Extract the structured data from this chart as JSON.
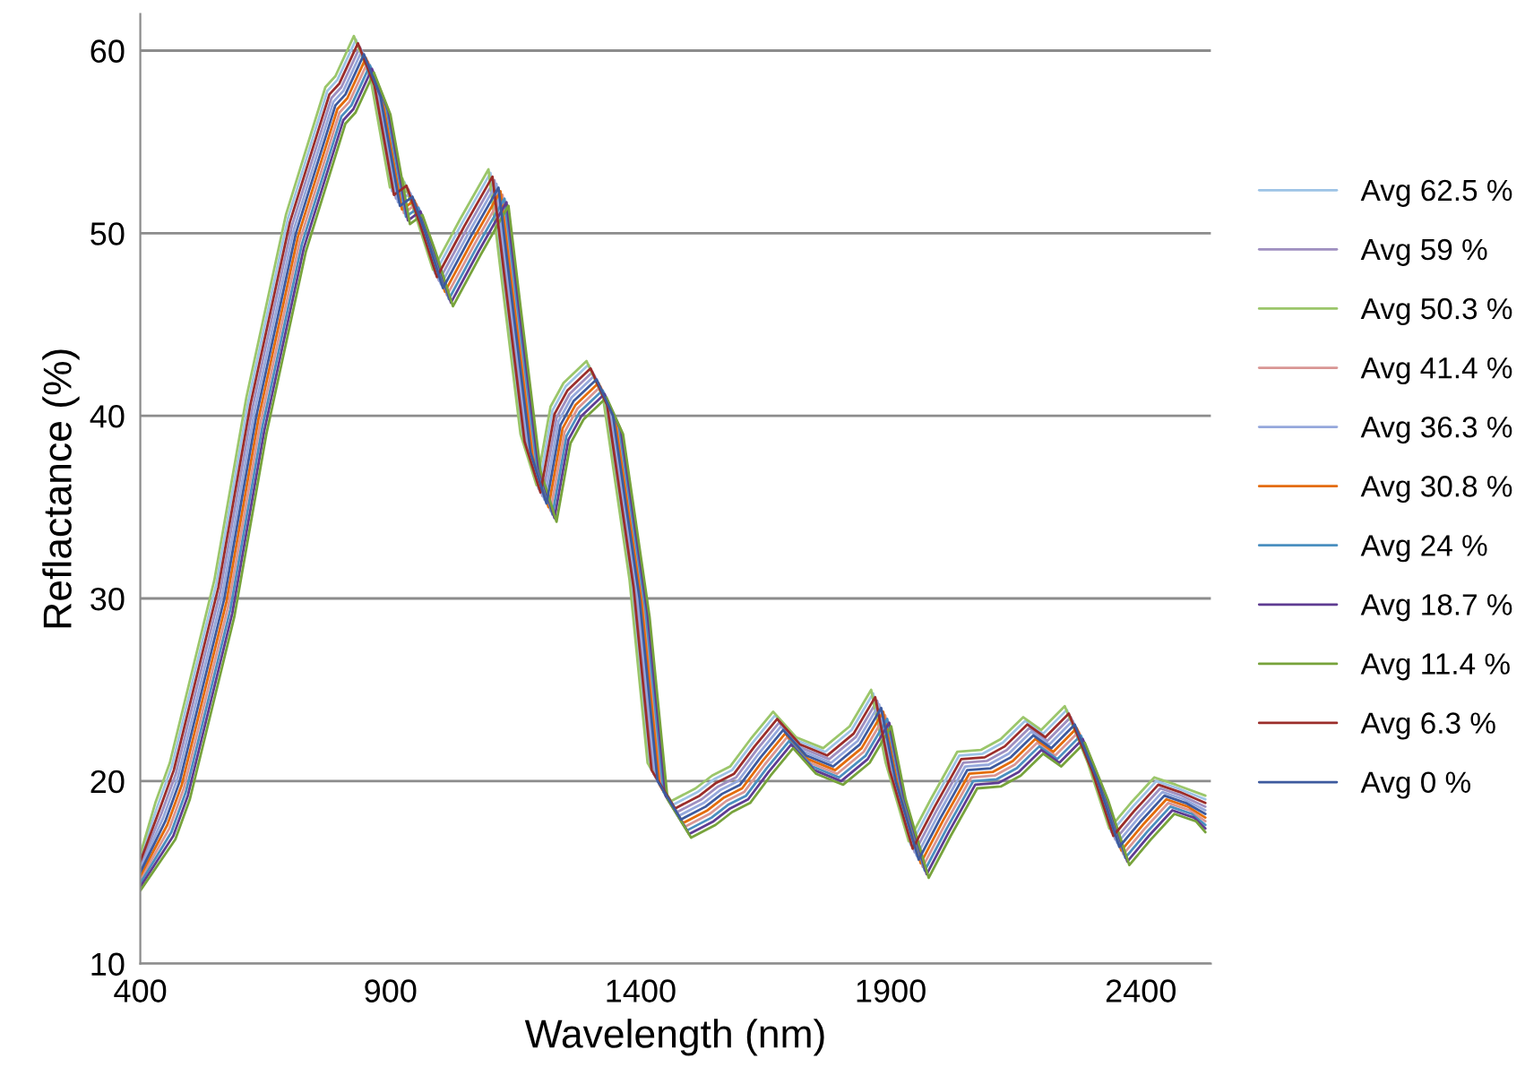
{
  "chart_data": {
    "type": "line",
    "xlabel": "Wavelength (nm)",
    "ylabel": "Reflactance (%)",
    "xlim": [
      400,
      2540
    ],
    "xticks": [
      400,
      900,
      1400,
      1900,
      2400
    ],
    "ylim": [
      10,
      62
    ],
    "yticks": [
      10,
      20,
      30,
      40,
      50,
      60
    ],
    "grid": "y",
    "legend": "right",
    "x": [
      400,
      450,
      479,
      568,
      632,
      711,
      790,
      810,
      847,
      880,
      919,
      944,
      970,
      1005,
      1060,
      1116,
      1140,
      1180,
      1212,
      1240,
      1266,
      1312,
      1345,
      1398,
      1434,
      1481,
      1530,
      1563,
      1599,
      1640,
      1685,
      1731,
      1785,
      1838,
      1881,
      1910,
      1956,
      2000,
      2053,
      2100,
      2140,
      2185,
      2221,
      2268,
      2314,
      2357,
      2400,
      2447,
      2490,
      2529
    ],
    "series": [
      {
        "name": "Avg 62.5 %",
        "color": "#9dc3e6",
        "x": [
          400,
          434,
          463,
          552,
          616,
          695,
          774,
          794,
          831,
          864,
          903,
          928,
          954,
          989,
          1044,
          1100,
          1124,
          1164,
          1196,
          1224,
          1250,
          1296,
          1329,
          1382,
          1418,
          1465,
          1514,
          1547,
          1583,
          1624,
          1669,
          1715,
          1769,
          1822,
          1865,
          1894,
          1940,
          1984,
          2037,
          2084,
          2124,
          2169,
          2205,
          2252,
          2298,
          2341,
          2384,
          2431,
          2474,
          2529
        ],
        "values": [
          15.8,
          18.6,
          20.8,
          30.8,
          40.8,
          50.8,
          57.8,
          58.4,
          60.6,
          58.3,
          52.3,
          52.8,
          50.8,
          47.8,
          50.6,
          53.3,
          47.8,
          38.8,
          36,
          40.3,
          41.6,
          42.8,
          40.8,
          30.8,
          20.8,
          18.7,
          19.4,
          20.1,
          20.6,
          22.1,
          23.6,
          22.2,
          21.6,
          22.8,
          24.8,
          20.8,
          16.5,
          18.8,
          21.4,
          21.5,
          22.1,
          23.3,
          22.6,
          23.9,
          20.8,
          17.2,
          18.6,
          20,
          19.6,
          19
        ]
      },
      {
        "name": "Avg 59 %",
        "color": "#9e8fc0",
        "x": [
          400,
          442,
          471,
          560,
          624,
          703,
          782,
          802,
          839,
          872,
          911,
          936,
          962,
          997,
          1052,
          1108,
          1132,
          1172,
          1204,
          1232,
          1258,
          1304,
          1337,
          1390,
          1426,
          1473,
          1522,
          1555,
          1591,
          1632,
          1677,
          1723,
          1777,
          1830,
          1873,
          1902,
          1948,
          1992,
          2045,
          2092,
          2132,
          2177,
          2213,
          2260,
          2306,
          2349,
          2392,
          2439,
          2482,
          2529
        ],
        "values": [
          15.4,
          18.2,
          20.4,
          30.4,
          40.4,
          50.4,
          57.4,
          58,
          60.2,
          57.9,
          51.9,
          52.4,
          50.4,
          47.4,
          50.2,
          52.9,
          47.4,
          38.4,
          35.6,
          39.9,
          41.2,
          42.4,
          40.4,
          30.4,
          20.4,
          18.3,
          19,
          19.7,
          20.2,
          21.7,
          23.2,
          21.8,
          21.2,
          22.4,
          24.4,
          20.4,
          16.1,
          18.4,
          21,
          21.1,
          21.7,
          22.9,
          22.2,
          23.5,
          20.4,
          16.8,
          18.2,
          19.6,
          19.2,
          18.6
        ]
      },
      {
        "name": "Avg 50.3 %",
        "color": "#9bc66a",
        "x": [
          400,
          430,
          459,
          548,
          612,
          691,
          770,
          790,
          827,
          860,
          899,
          924,
          950,
          985,
          1040,
          1096,
          1120,
          1160,
          1192,
          1220,
          1246,
          1292,
          1325,
          1378,
          1414,
          1461,
          1510,
          1543,
          1579,
          1620,
          1665,
          1711,
          1765,
          1818,
          1861,
          1890,
          1936,
          1980,
          2033,
          2080,
          2120,
          2165,
          2201,
          2248,
          2294,
          2337,
          2380,
          2427,
          2470,
          2529
        ],
        "values": [
          16,
          18.8,
          21,
          31,
          41,
          51,
          58,
          58.6,
          60.8,
          58.5,
          52.5,
          53,
          51,
          48,
          50.8,
          53.5,
          48,
          39,
          36.2,
          40.5,
          41.8,
          43,
          41,
          31,
          21,
          18.9,
          19.6,
          20.3,
          20.8,
          22.3,
          23.8,
          22.4,
          21.8,
          23,
          25,
          21,
          16.7,
          19,
          21.6,
          21.7,
          22.3,
          23.5,
          22.8,
          24.1,
          21,
          17.4,
          18.8,
          20.2,
          19.8,
          19.2
        ]
      },
      {
        "name": "Avg 41.4 %",
        "color": "#d99694",
        "x": [
          400,
          458,
          487,
          576,
          640,
          719,
          798,
          818,
          855,
          888,
          927,
          952,
          978,
          1013,
          1068,
          1124,
          1148,
          1188,
          1220,
          1248,
          1274,
          1320,
          1353,
          1406,
          1442,
          1489,
          1538,
          1571,
          1607,
          1648,
          1693,
          1739,
          1793,
          1846,
          1889,
          1918,
          1964,
          2008,
          2061,
          2108,
          2148,
          2193,
          2229,
          2276,
          2322,
          2365,
          2408,
          2455,
          2498,
          2529
        ],
        "values": [
          14.6,
          17.4,
          19.6,
          29.6,
          39.6,
          49.6,
          56.6,
          57.2,
          59.4,
          57.1,
          51.1,
          51.6,
          49.6,
          46.6,
          49.4,
          52.1,
          46.6,
          37.6,
          34.8,
          39.1,
          40.4,
          41.6,
          39.6,
          29.6,
          19.6,
          17.5,
          18.2,
          18.9,
          19.4,
          20.9,
          22.4,
          21,
          20.4,
          21.6,
          23.6,
          19.6,
          15.3,
          17.6,
          20.2,
          20.3,
          20.9,
          22.1,
          21.4,
          22.7,
          19.6,
          16,
          17.4,
          18.8,
          18.4,
          17.8
        ]
      },
      {
        "name": "Avg 36.3 %",
        "color": "#95a8dc",
        "x": [
          400,
          446,
          475,
          564,
          628,
          707,
          786,
          806,
          843,
          876,
          915,
          940,
          966,
          1001,
          1056,
          1112,
          1136,
          1176,
          1208,
          1236,
          1262,
          1308,
          1341,
          1394,
          1430,
          1477,
          1526,
          1559,
          1595,
          1636,
          1681,
          1727,
          1781,
          1834,
          1877,
          1906,
          1952,
          1996,
          2049,
          2096,
          2136,
          2181,
          2217,
          2264,
          2310,
          2353,
          2396,
          2443,
          2486,
          2529
        ],
        "values": [
          15.2,
          18,
          20.2,
          30.2,
          40.2,
          50.2,
          57.2,
          57.8,
          60,
          57.7,
          51.7,
          52.2,
          50.2,
          47.2,
          50,
          52.7,
          47.2,
          38.2,
          35.4,
          39.7,
          41,
          42.2,
          40.2,
          30.2,
          20.2,
          18.1,
          18.8,
          19.5,
          20,
          21.5,
          23,
          21.6,
          21,
          22.2,
          24.2,
          20.2,
          15.9,
          18.2,
          20.8,
          20.9,
          21.5,
          22.7,
          22,
          23.3,
          20.2,
          16.6,
          18,
          19.4,
          19,
          18.4
        ]
      },
      {
        "name": "Avg 30.8 %",
        "color": "#e46c0a",
        "x": [
          400,
          454,
          483,
          572,
          636,
          715,
          794,
          814,
          851,
          884,
          923,
          948,
          974,
          1009,
          1064,
          1120,
          1144,
          1184,
          1216,
          1244,
          1270,
          1316,
          1349,
          1402,
          1438,
          1485,
          1534,
          1567,
          1603,
          1644,
          1689,
          1735,
          1789,
          1842,
          1885,
          1914,
          1960,
          2004,
          2057,
          2104,
          2144,
          2189,
          2225,
          2272,
          2318,
          2361,
          2404,
          2451,
          2494,
          2529
        ],
        "values": [
          14.8,
          17.6,
          19.8,
          29.8,
          39.8,
          49.8,
          56.8,
          57.4,
          59.6,
          57.3,
          51.3,
          51.8,
          49.8,
          46.8,
          49.6,
          52.3,
          46.8,
          37.8,
          35,
          39.3,
          40.6,
          41.8,
          39.8,
          29.8,
          19.8,
          17.7,
          18.4,
          19.1,
          19.6,
          21.1,
          22.6,
          21.2,
          20.6,
          21.8,
          23.8,
          19.8,
          15.5,
          17.8,
          20.4,
          20.5,
          21.1,
          22.3,
          21.6,
          22.9,
          19.8,
          16.2,
          17.6,
          19,
          18.6,
          18
        ]
      },
      {
        "name": "Avg 24 %",
        "color": "#4a8fc0",
        "x": [
          400,
          462,
          491,
          580,
          644,
          723,
          802,
          822,
          859,
          892,
          931,
          956,
          982,
          1017,
          1072,
          1128,
          1152,
          1192,
          1224,
          1252,
          1278,
          1324,
          1357,
          1410,
          1446,
          1493,
          1542,
          1575,
          1611,
          1652,
          1697,
          1743,
          1797,
          1850,
          1893,
          1922,
          1968,
          2012,
          2065,
          2112,
          2152,
          2197,
          2233,
          2280,
          2326,
          2369,
          2412,
          2459,
          2502,
          2529
        ],
        "values": [
          14.4,
          17.2,
          19.4,
          29.4,
          39.4,
          49.4,
          56.4,
          57,
          59.2,
          56.9,
          50.9,
          51.4,
          49.4,
          46.4,
          49.2,
          51.9,
          46.4,
          37.4,
          34.6,
          38.9,
          40.2,
          41.4,
          39.4,
          29.4,
          19.4,
          17.3,
          18,
          18.7,
          19.2,
          20.7,
          22.2,
          20.8,
          20.2,
          21.4,
          23.4,
          19.4,
          15.1,
          17.4,
          20,
          20.1,
          20.7,
          21.9,
          21.2,
          22.5,
          19.4,
          15.8,
          17.2,
          18.6,
          18.2,
          17.6
        ]
      },
      {
        "name": "Avg 18.7 %",
        "color": "#5f3c92",
        "x": [
          400,
          466,
          495,
          584,
          648,
          727,
          806,
          826,
          863,
          896,
          935,
          960,
          986,
          1021,
          1076,
          1132,
          1156,
          1196,
          1228,
          1256,
          1282,
          1328,
          1361,
          1414,
          1450,
          1497,
          1546,
          1579,
          1615,
          1656,
          1701,
          1747,
          1801,
          1854,
          1897,
          1926,
          1972,
          2016,
          2069,
          2116,
          2156,
          2201,
          2237,
          2284,
          2330,
          2373,
          2416,
          2463,
          2506,
          2529
        ],
        "values": [
          14.2,
          17,
          19.2,
          29.2,
          39.2,
          49.2,
          56.2,
          56.8,
          59,
          56.7,
          50.7,
          51.2,
          49.2,
          46.2,
          49,
          51.7,
          46.2,
          37.2,
          34.4,
          38.7,
          40,
          41.2,
          39.2,
          29.2,
          19.2,
          17.1,
          17.8,
          18.5,
          19,
          20.5,
          22,
          20.6,
          20,
          21.2,
          23.2,
          19.2,
          14.9,
          17.2,
          19.8,
          19.9,
          20.5,
          21.7,
          21,
          22.3,
          19.2,
          15.6,
          17,
          18.4,
          18,
          17.4
        ]
      },
      {
        "name": "Avg 11.4 %",
        "color": "#77a33b",
        "x": [
          400,
          470,
          499,
          588,
          652,
          731,
          810,
          830,
          867,
          900,
          939,
          964,
          990,
          1025,
          1080,
          1136,
          1160,
          1200,
          1232,
          1260,
          1286,
          1332,
          1365,
          1418,
          1454,
          1501,
          1550,
          1583,
          1619,
          1660,
          1705,
          1751,
          1805,
          1858,
          1901,
          1930,
          1976,
          2020,
          2073,
          2120,
          2160,
          2205,
          2241,
          2288,
          2334,
          2377,
          2420,
          2467,
          2510,
          2529
        ],
        "values": [
          14,
          16.8,
          19,
          29,
          39,
          49,
          56,
          56.6,
          58.8,
          56.5,
          50.5,
          51,
          49,
          46,
          48.8,
          51.5,
          46,
          37,
          34.2,
          38.5,
          39.8,
          41,
          39,
          29,
          19,
          16.9,
          17.6,
          18.3,
          18.8,
          20.3,
          21.8,
          20.4,
          19.8,
          21,
          23,
          19,
          14.7,
          17,
          19.6,
          19.7,
          20.3,
          21.5,
          20.8,
          22.1,
          19,
          15.4,
          16.8,
          18.2,
          17.8,
          17.2
        ]
      },
      {
        "name": "Avg 6.3 %",
        "color": "#9b2d2a",
        "x": [
          400,
          438,
          467,
          556,
          620,
          699,
          778,
          798,
          835,
          868,
          907,
          932,
          958,
          993,
          1048,
          1104,
          1128,
          1168,
          1200,
          1228,
          1254,
          1300,
          1333,
          1386,
          1422,
          1469,
          1518,
          1551,
          1587,
          1628,
          1673,
          1719,
          1773,
          1826,
          1869,
          1898,
          1944,
          1988,
          2041,
          2088,
          2128,
          2173,
          2209,
          2256,
          2302,
          2345,
          2388,
          2435,
          2478,
          2529
        ],
        "values": [
          15.6,
          18.4,
          20.6,
          30.6,
          40.6,
          50.6,
          57.6,
          58.2,
          60.4,
          58.1,
          52.1,
          52.6,
          50.6,
          47.6,
          50.4,
          53.1,
          47.6,
          38.6,
          35.8,
          40.1,
          41.4,
          42.6,
          40.6,
          30.6,
          20.6,
          18.5,
          19.2,
          19.9,
          20.4,
          21.9,
          23.4,
          22,
          21.4,
          22.6,
          24.6,
          20.6,
          16.3,
          18.6,
          21.2,
          21.3,
          21.9,
          23.1,
          22.4,
          23.7,
          20.6,
          17,
          18.4,
          19.8,
          19.4,
          18.8
        ]
      },
      {
        "name": "Avg 0 %",
        "color": "#3d5a9e",
        "values": [
          15,
          17.8,
          20,
          30,
          40,
          50,
          57,
          57.6,
          59.8,
          57.5,
          51.5,
          52,
          50,
          47,
          49.8,
          52.5,
          47,
          38,
          35.2,
          39.5,
          40.8,
          42,
          40,
          30,
          20,
          17.9,
          18.6,
          19.3,
          19.8,
          21.3,
          22.8,
          21.4,
          20.8,
          22,
          24,
          20,
          15.7,
          18,
          20.6,
          20.7,
          21.3,
          22.5,
          21.8,
          23.1,
          20,
          16.4,
          17.8,
          19.2,
          18.8,
          18.2
        ]
      }
    ]
  }
}
